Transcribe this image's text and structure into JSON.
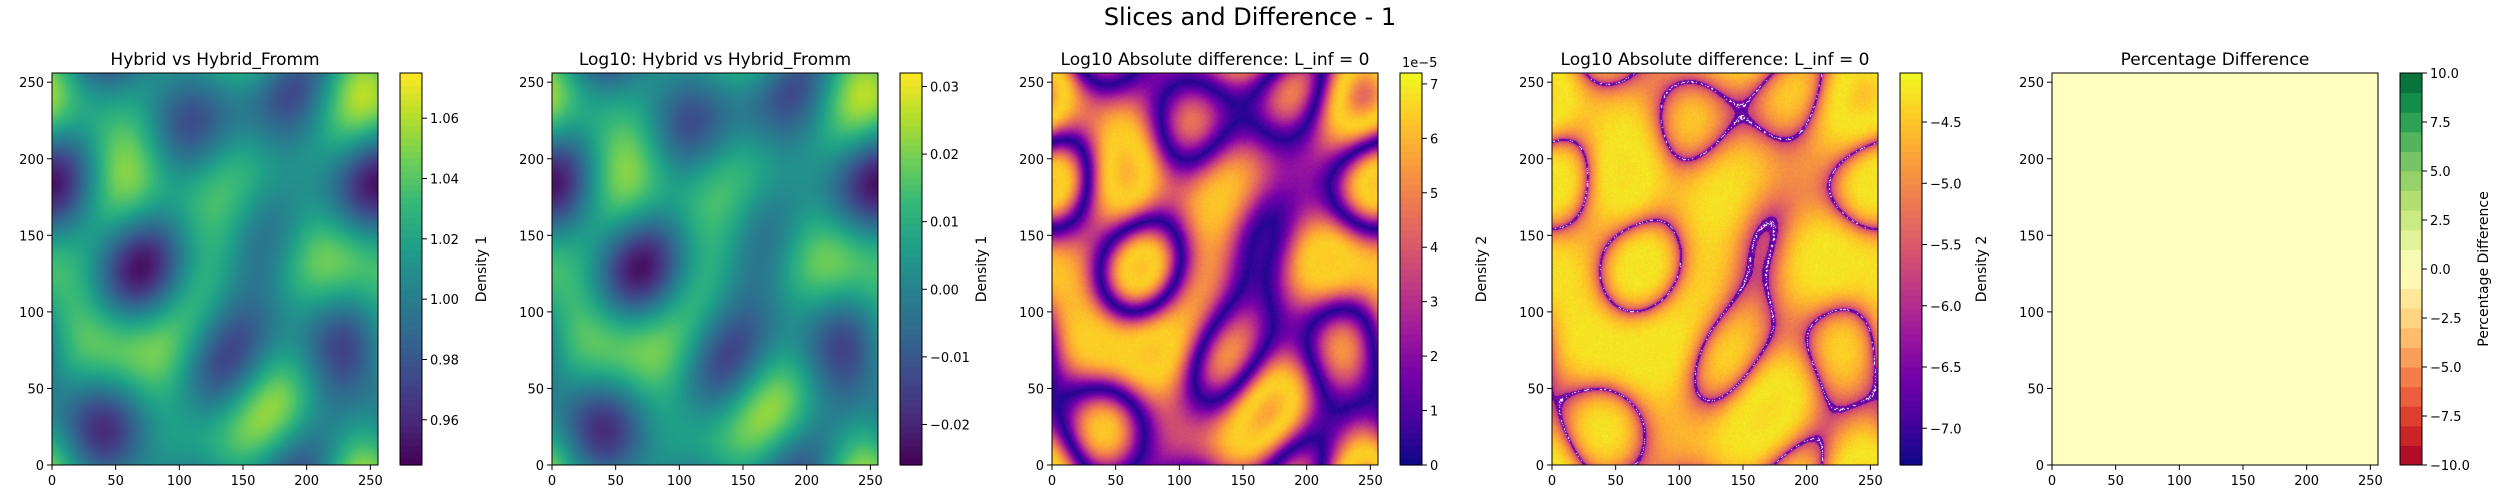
{
  "figure": {
    "title": "Slices and Difference - 1"
  },
  "chart_data": [
    {
      "type": "heatmap",
      "title": "Hybrid vs Hybrid_Fromm",
      "xlim": [
        0,
        256
      ],
      "ylim": [
        0,
        256
      ],
      "xticks": [
        0,
        50,
        100,
        150,
        200,
        250
      ],
      "yticks": [
        0,
        50,
        100,
        150,
        200,
        250
      ],
      "colormap": "viridis",
      "colorbar": {
        "label": "Density 1",
        "range": [
          0.945,
          1.075
        ],
        "ticks": [
          0.96,
          0.98,
          1.0,
          1.02,
          1.04,
          1.06
        ],
        "ticklabels": [
          "0.96",
          "0.98",
          "1.00",
          "1.02",
          "1.04",
          "1.06"
        ]
      }
    },
    {
      "type": "heatmap",
      "title": "Log10: Hybrid vs Hybrid_Fromm",
      "xlim": [
        0,
        256
      ],
      "ylim": [
        0,
        256
      ],
      "xticks": [
        0,
        50,
        100,
        150,
        200,
        250
      ],
      "yticks": [
        0,
        50,
        100,
        150,
        200,
        250
      ],
      "colormap": "viridis",
      "colorbar": {
        "label": "Density 1",
        "range": [
          -0.026,
          0.032
        ],
        "ticks": [
          -0.02,
          -0.01,
          0.0,
          0.01,
          0.02,
          0.03
        ],
        "ticklabels": [
          "−0.02",
          "−0.01",
          "0.00",
          "0.01",
          "0.02",
          "0.03"
        ]
      }
    },
    {
      "type": "heatmap",
      "title": "Log10 Absolute difference: L_inf = 0",
      "xlim": [
        0,
        256
      ],
      "ylim": [
        0,
        256
      ],
      "xticks": [
        0,
        50,
        100,
        150,
        200,
        250
      ],
      "yticks": [
        0,
        50,
        100,
        150,
        200,
        250
      ],
      "colormap": "plasma",
      "colorbar": {
        "label": "Density 2",
        "range": [
          0,
          7.2
        ],
        "offset": "1e−5",
        "ticks": [
          0,
          1,
          2,
          3,
          4,
          5,
          6,
          7
        ],
        "ticklabels": [
          "0",
          "1",
          "2",
          "3",
          "4",
          "5",
          "6",
          "7"
        ]
      }
    },
    {
      "type": "heatmap",
      "title": "Log10 Absolute difference: L_inf = 0",
      "xlim": [
        0,
        256
      ],
      "ylim": [
        0,
        256
      ],
      "xticks": [
        0,
        50,
        100,
        150,
        200,
        250
      ],
      "yticks": [
        0,
        50,
        100,
        150,
        200,
        250
      ],
      "colormap": "plasma",
      "colorbar": {
        "label": "Density 2",
        "range": [
          -7.3,
          -4.1
        ],
        "ticks": [
          -7.0,
          -6.5,
          -6.0,
          -5.5,
          -5.0,
          -4.5
        ],
        "ticklabels": [
          "−7.0",
          "−6.5",
          "−6.0",
          "−5.5",
          "−5.0",
          "−4.5"
        ]
      }
    },
    {
      "type": "heatmap",
      "title": "Percentage Difference",
      "xlim": [
        0,
        256
      ],
      "ylim": [
        0,
        256
      ],
      "xticks": [
        0,
        50,
        100,
        150,
        200,
        250
      ],
      "yticks": [
        0,
        50,
        100,
        150,
        200,
        250
      ],
      "colormap": "RdYlGn",
      "uniform_value": 0,
      "colorbar": {
        "label": "Percentage Difference",
        "range": [
          -10,
          10
        ],
        "levels": 20,
        "ticks": [
          -10,
          -7.5,
          -5,
          -2.5,
          0,
          2.5,
          5,
          7.5,
          10
        ],
        "ticklabels": [
          "−10.0",
          "−7.5",
          "−5.0",
          "−2.5",
          "0.0",
          "2.5",
          "5.0",
          "7.5",
          "10.0"
        ]
      }
    }
  ]
}
